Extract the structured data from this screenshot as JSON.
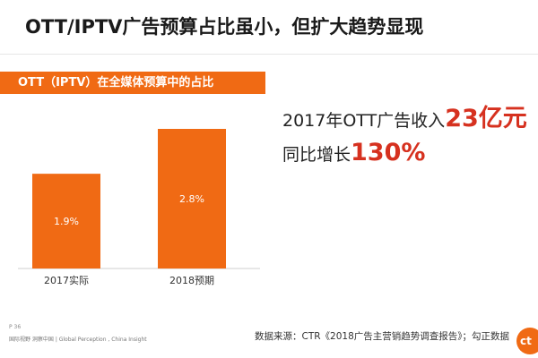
{
  "slide": {
    "title": "OTT/IPTV广告预算占比虽小，但扩大趋势显现",
    "subtitle": "OTT（IPTV）在全媒体预算中的占比",
    "accent_color": "#f06a14",
    "highlight_color": "#d6311f"
  },
  "chart_data": {
    "type": "bar",
    "title": "OTT（IPTV）在全媒体预算中的占比",
    "categories": [
      "2017实际",
      "2018预期"
    ],
    "values": [
      1.9,
      2.8
    ],
    "value_labels": [
      "1.9%",
      "2.8%"
    ],
    "unit": "%",
    "ylim": [
      0,
      3.5
    ],
    "xlabel": "",
    "ylabel": "",
    "grid": false,
    "bar_color": "#f06a14"
  },
  "callouts": [
    {
      "prefix": "2017年OTT广告收入",
      "highlight": "23亿元"
    },
    {
      "prefix": "同比增长",
      "highlight": "130%"
    }
  ],
  "footer": {
    "page": "P 36",
    "tagline": "国际视野  洞察中国 | Global Perception , China Insight",
    "source": "数据来源：CTR《2018广告主营销趋势调查报告》；勾正数据",
    "logo_text": "ct"
  }
}
